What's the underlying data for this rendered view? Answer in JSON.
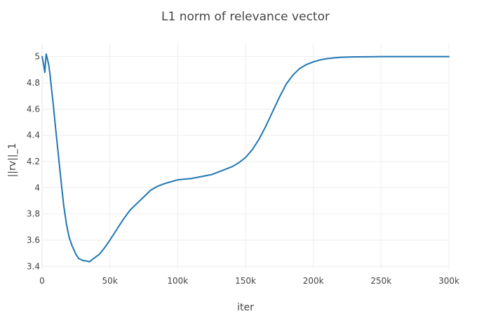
{
  "chart_data": {
    "type": "line",
    "title": "L1 norm of relevance vector",
    "xlabel": "iter",
    "ylabel": "||rv||_1",
    "xlim": [
      0,
      300000
    ],
    "ylim": [
      3.38,
      5.1
    ],
    "grid": true,
    "legend": "none",
    "colors": {
      "line": "#1f77b4",
      "grid": "#eeeeee",
      "text": "#444444"
    },
    "x_ticks": [
      {
        "value": 0,
        "label": "0"
      },
      {
        "value": 50000,
        "label": "50k"
      },
      {
        "value": 100000,
        "label": "100k"
      },
      {
        "value": 150000,
        "label": "150k"
      },
      {
        "value": 200000,
        "label": "200k"
      },
      {
        "value": 250000,
        "label": "250k"
      },
      {
        "value": 300000,
        "label": "300k"
      }
    ],
    "y_ticks": [
      {
        "value": 3.4,
        "label": "3.4"
      },
      {
        "value": 3.6,
        "label": "3.6"
      },
      {
        "value": 3.8,
        "label": "3.8"
      },
      {
        "value": 4.0,
        "label": "4"
      },
      {
        "value": 4.2,
        "label": "4.2"
      },
      {
        "value": 4.4,
        "label": "4.4"
      },
      {
        "value": 4.6,
        "label": "4.6"
      },
      {
        "value": 4.8,
        "label": "4.8"
      },
      {
        "value": 5.0,
        "label": "5"
      }
    ],
    "series": [
      {
        "x": [
          0,
          1000,
          2000,
          3000,
          4000,
          5000,
          6000,
          7000,
          8000,
          10000,
          12000,
          14000,
          16000,
          18000,
          20000,
          22000,
          25000,
          27000,
          30000,
          33000,
          35000,
          38000,
          42000,
          46000,
          50000,
          55000,
          60000,
          65000,
          70000,
          75000,
          80000,
          85000,
          90000,
          95000,
          100000,
          105000,
          110000,
          115000,
          120000,
          125000,
          130000,
          135000,
          140000,
          145000,
          150000,
          155000,
          160000,
          165000,
          170000,
          175000,
          180000,
          185000,
          190000,
          195000,
          200000,
          205000,
          210000,
          215000,
          220000,
          230000,
          240000,
          250000,
          260000,
          270000,
          280000,
          290000,
          300000
        ],
        "y": [
          5.0,
          4.95,
          4.88,
          5.02,
          4.98,
          4.93,
          4.85,
          4.75,
          4.66,
          4.45,
          4.25,
          4.05,
          3.86,
          3.72,
          3.62,
          3.56,
          3.49,
          3.46,
          3.445,
          3.44,
          3.435,
          3.46,
          3.49,
          3.54,
          3.6,
          3.68,
          3.76,
          3.83,
          3.88,
          3.93,
          3.98,
          4.01,
          4.03,
          4.045,
          4.06,
          4.065,
          4.07,
          4.08,
          4.09,
          4.1,
          4.12,
          4.14,
          4.16,
          4.19,
          4.23,
          4.29,
          4.37,
          4.47,
          4.58,
          4.69,
          4.79,
          4.86,
          4.91,
          4.94,
          4.96,
          4.975,
          4.985,
          4.99,
          4.995,
          4.998,
          4.999,
          5.0,
          5.0,
          5.0,
          5.0,
          5.0,
          5.0
        ]
      }
    ]
  }
}
